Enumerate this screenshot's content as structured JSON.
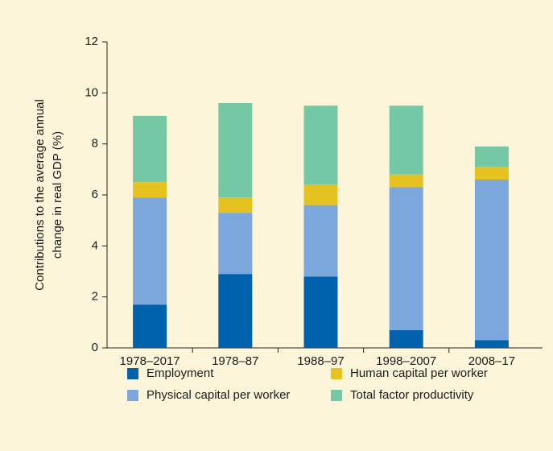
{
  "chart_data": {
    "type": "stacked_bar",
    "ylabel": [
      "Contributions to the average annual",
      "change in real GDP (%)"
    ],
    "categories": [
      "1978–2017",
      "1978–87",
      "1988–97",
      "1998–2007",
      "2008–17"
    ],
    "series": [
      {
        "name": "Employment",
        "color": "#0061ad",
        "values": [
          1.7,
          2.9,
          2.8,
          0.7,
          0.3
        ]
      },
      {
        "name": "Physical capital per worker",
        "color": "#7ba7dc",
        "values": [
          4.2,
          2.4,
          2.8,
          5.6,
          6.3
        ]
      },
      {
        "name": "Human capital per worker",
        "color": "#e5c21f",
        "values": [
          0.6,
          0.6,
          0.8,
          0.5,
          0.5
        ]
      },
      {
        "name": "Total factor productivity",
        "color": "#74c8a5",
        "values": [
          2.6,
          3.7,
          3.1,
          2.7,
          0.8
        ]
      }
    ],
    "ylim": [
      0,
      12
    ],
    "yticks": [
      0,
      2,
      4,
      6,
      8,
      10,
      12
    ],
    "grid": false
  }
}
